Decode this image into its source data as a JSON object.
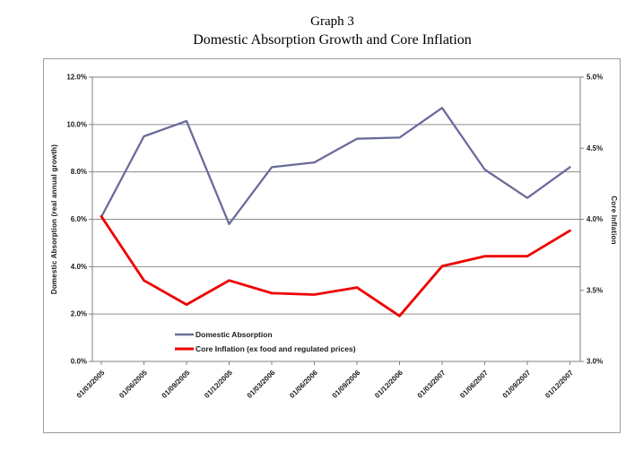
{
  "header": {
    "graph_number": "Graph 3",
    "title": "Domestic Absorption Growth and Core Inflation"
  },
  "colors": {
    "domestic_absorption_line": "#6B6B9B",
    "core_inflation_line": "#EE0000",
    "gridline": "#8c8c8c",
    "axis_line": "#7f7f7f",
    "outer_border": "#9c9c9c",
    "tick_text": "#1a1a1a"
  },
  "chart_data": {
    "type": "line",
    "x_labels": [
      "01/03/2005",
      "01/06/2005",
      "01/09/2005",
      "01/12/2005",
      "01/03/2006",
      "01/06/2006",
      "01/09/2006",
      "01/12/2006",
      "01/03/2007",
      "01/06/2007",
      "01/09/2007",
      "01/12/2007"
    ],
    "series": [
      {
        "name": "Domestic Absorption",
        "axis": "left",
        "color": "#6B6B9B",
        "values": [
          6.1,
          9.5,
          10.15,
          5.8,
          8.2,
          8.4,
          9.4,
          9.45,
          10.7,
          8.1,
          6.9,
          8.2
        ]
      },
      {
        "name": "Core Inflation (ex food and regulated prices)",
        "axis": "right",
        "color": "#EE0000",
        "values": [
          4.02,
          3.57,
          3.4,
          3.57,
          3.48,
          3.47,
          3.52,
          3.32,
          3.67,
          3.74,
          3.74,
          3.92
        ]
      }
    ],
    "left_axis": {
      "title": "Domestic Absorption (real annual growth)",
      "min": 0,
      "max": 12,
      "step": 2,
      "tick_labels": [
        "12.0%",
        "10.0%",
        "8.0%",
        "6.0%",
        "4.0%",
        "2.0%",
        "0.0%"
      ]
    },
    "right_axis": {
      "title": "Core Inflation",
      "min": 3,
      "max": 5,
      "step": 0.5,
      "tick_labels": [
        "5.0%",
        "4.5%",
        "4.0%",
        "3.5%",
        "3.0%"
      ]
    },
    "grid": true,
    "legend_position": "inside-bottom-left"
  }
}
